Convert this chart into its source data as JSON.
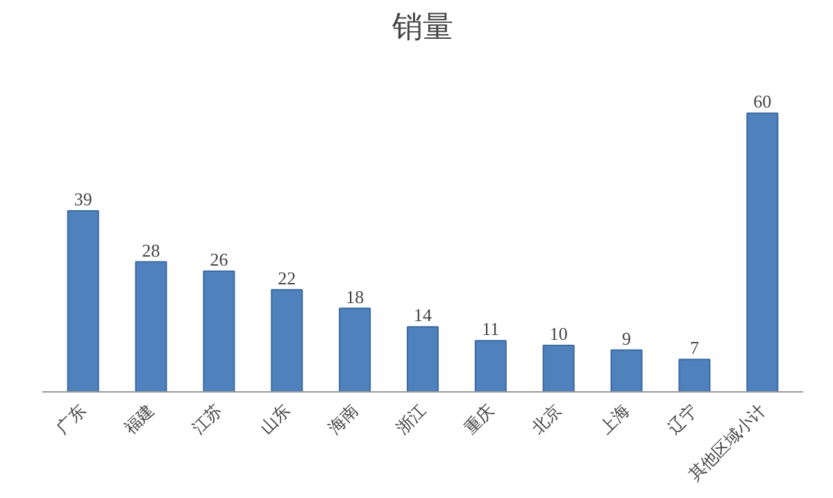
{
  "chart_data": {
    "type": "bar",
    "title": "销量",
    "categories": [
      "广东",
      "福建",
      "江苏",
      "山东",
      "海南",
      "浙江",
      "重庆",
      "北京",
      "上海",
      "辽宁",
      "其他区域小计"
    ],
    "values": [
      39,
      28,
      26,
      22,
      18,
      14,
      11,
      10,
      9,
      7,
      60
    ],
    "color": "#4f81bd",
    "data_labels": true,
    "tick_labels": "x"
  }
}
